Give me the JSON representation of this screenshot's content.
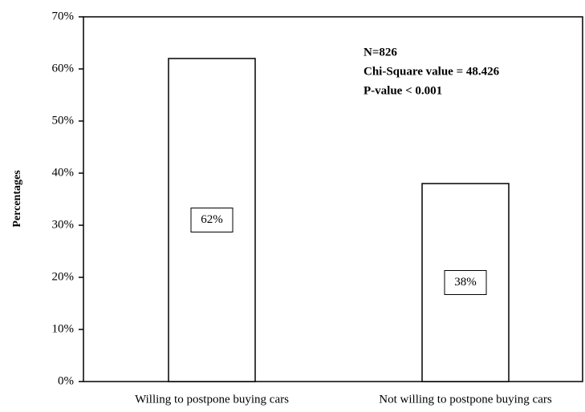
{
  "chart_data": {
    "type": "bar",
    "y_label": "Percentages",
    "categories": [
      "Willing to postpone buying cars",
      "Not willing to postpone buying cars"
    ],
    "values": [
      62,
      38
    ],
    "value_labels": [
      "62%",
      "38%"
    ],
    "color": "#ffffff",
    "ylim": [
      0,
      70
    ],
    "yticks": [
      {
        "value": 0,
        "label": "0%"
      },
      {
        "value": 10,
        "label": "10%"
      },
      {
        "value": 20,
        "label": "20%"
      },
      {
        "value": 30,
        "label": "30%"
      },
      {
        "value": 40,
        "label": "40%"
      },
      {
        "value": 50,
        "label": "50%"
      },
      {
        "value": 60,
        "label": "60%"
      },
      {
        "value": 70,
        "label": "70%"
      }
    ],
    "annotations": [
      "N=826",
      "Chi-Square value = 48.426",
      "P-value < 0.001"
    ]
  }
}
